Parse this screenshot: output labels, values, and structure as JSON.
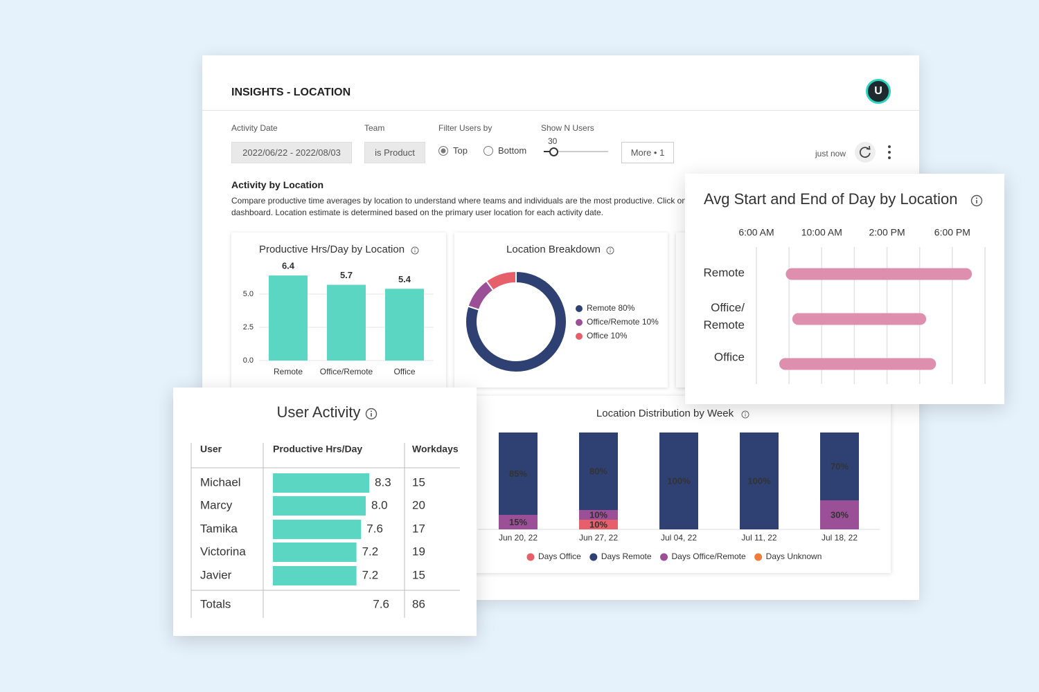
{
  "header": {
    "title": "INSIGHTS - LOCATION",
    "avatar": "U"
  },
  "filters": {
    "activity_date": {
      "label": "Activity Date",
      "value": "2022/06/22 - 2022/08/03"
    },
    "team": {
      "label": "Team",
      "value": "is Product"
    },
    "filter_users": {
      "label": "Filter Users by",
      "options": [
        "Top",
        "Bottom"
      ],
      "selected": "Top"
    },
    "show_n_users": {
      "label": "Show N Users",
      "value": 30
    },
    "more": "More • 1",
    "status": "just now"
  },
  "section": {
    "title": "Activity by Location",
    "description": [
      "Compare productive time averages by location to understand where teams and individuals are the most productive. Click on a",
      "dashboard. Location estimate is determined based on the primary user location for each activity date."
    ]
  },
  "chart_data": [
    {
      "type": "bar",
      "title": "Productive Hrs/Day by Location",
      "categories": [
        "Remote",
        "Office/Remote",
        "Office"
      ],
      "values": [
        6.4,
        5.7,
        5.4
      ],
      "color": "#5ad6c2",
      "ylim": [
        0,
        7
      ],
      "yticks": [
        {
          "value": 0,
          "label": "0.0"
        },
        2.5,
        {
          "value": 5,
          "label": "5.0"
        }
      ],
      "grid": true
    },
    {
      "type": "pie",
      "title": "Location Breakdown",
      "categories": [
        "Remote",
        "Office/Remote",
        "Office"
      ],
      "values": [
        80,
        10,
        10
      ],
      "value_labels": [
        "80%",
        "10%",
        "10%"
      ],
      "colors": [
        "#2f4173",
        "#9a4f96",
        "#e5606a"
      ]
    },
    {
      "type": "range",
      "title": "Avg Start and End of Day by Location",
      "categories": [
        "Remote",
        "Office/\nRemote",
        "Office"
      ],
      "start": [
        7.8,
        8.2,
        7.4
      ],
      "end": [
        19.2,
        16.4,
        17.0
      ],
      "color": "#de8fae",
      "xlim": [
        6,
        20
      ],
      "xticks": [
        {
          "value": 6,
          "label": "6:00 AM"
        },
        {
          "value": 10,
          "label": "10:00 AM"
        },
        {
          "value": 14,
          "label": "2:00 PM"
        },
        {
          "value": 18,
          "label": "6:00 PM"
        }
      ],
      "minor_xticks": [
        8,
        12,
        16,
        20
      ],
      "grid": true
    },
    {
      "type": "stacked-bar",
      "title": "Location Distribution by Week",
      "categories": [
        "Jun 20, 22",
        "Jun 27, 22",
        "Jul 04, 22",
        "Jul 11, 22",
        "Jul 18, 22"
      ],
      "ylim": [
        0,
        100
      ],
      "series": [
        {
          "name": "Days Office",
          "color": "#e5606a",
          "values": [
            0,
            10,
            0,
            0,
            0
          ],
          "value_labels": [
            null,
            "10%",
            null,
            null,
            null
          ]
        },
        {
          "name": "Days Remote",
          "color": "#2f4173",
          "values": [
            85,
            80,
            100,
            100,
            70
          ],
          "value_labels": [
            "85%",
            "80%",
            "100%",
            "100%",
            "70%"
          ]
        },
        {
          "name": "Days Office/Remote",
          "color": "#9a4f96",
          "values": [
            15,
            10,
            0,
            0,
            30
          ],
          "value_labels": [
            "15%",
            "10%",
            null,
            null,
            "30%"
          ]
        },
        {
          "name": "Days Unknown",
          "color": "#ee7d3c",
          "values": [
            0,
            0,
            0,
            0,
            0
          ],
          "value_labels": [
            null,
            null,
            null,
            null,
            null
          ]
        }
      ]
    }
  ],
  "user_activity": {
    "title": "User Activity",
    "columns": [
      "User",
      "Productive Hrs/Day",
      "Workdays"
    ],
    "bar_color": "#5ad6c2",
    "rows": [
      [
        "Michael",
        8.3,
        15
      ],
      [
        "Marcy",
        {
          "value": 8,
          "label": "8.0"
        },
        20
      ],
      [
        "Tamika",
        7.6,
        17
      ],
      [
        "Victorina",
        7.2,
        19
      ],
      [
        "Javier",
        7.2,
        15
      ]
    ],
    "totals": [
      "Totals",
      7.6,
      86
    ]
  }
}
